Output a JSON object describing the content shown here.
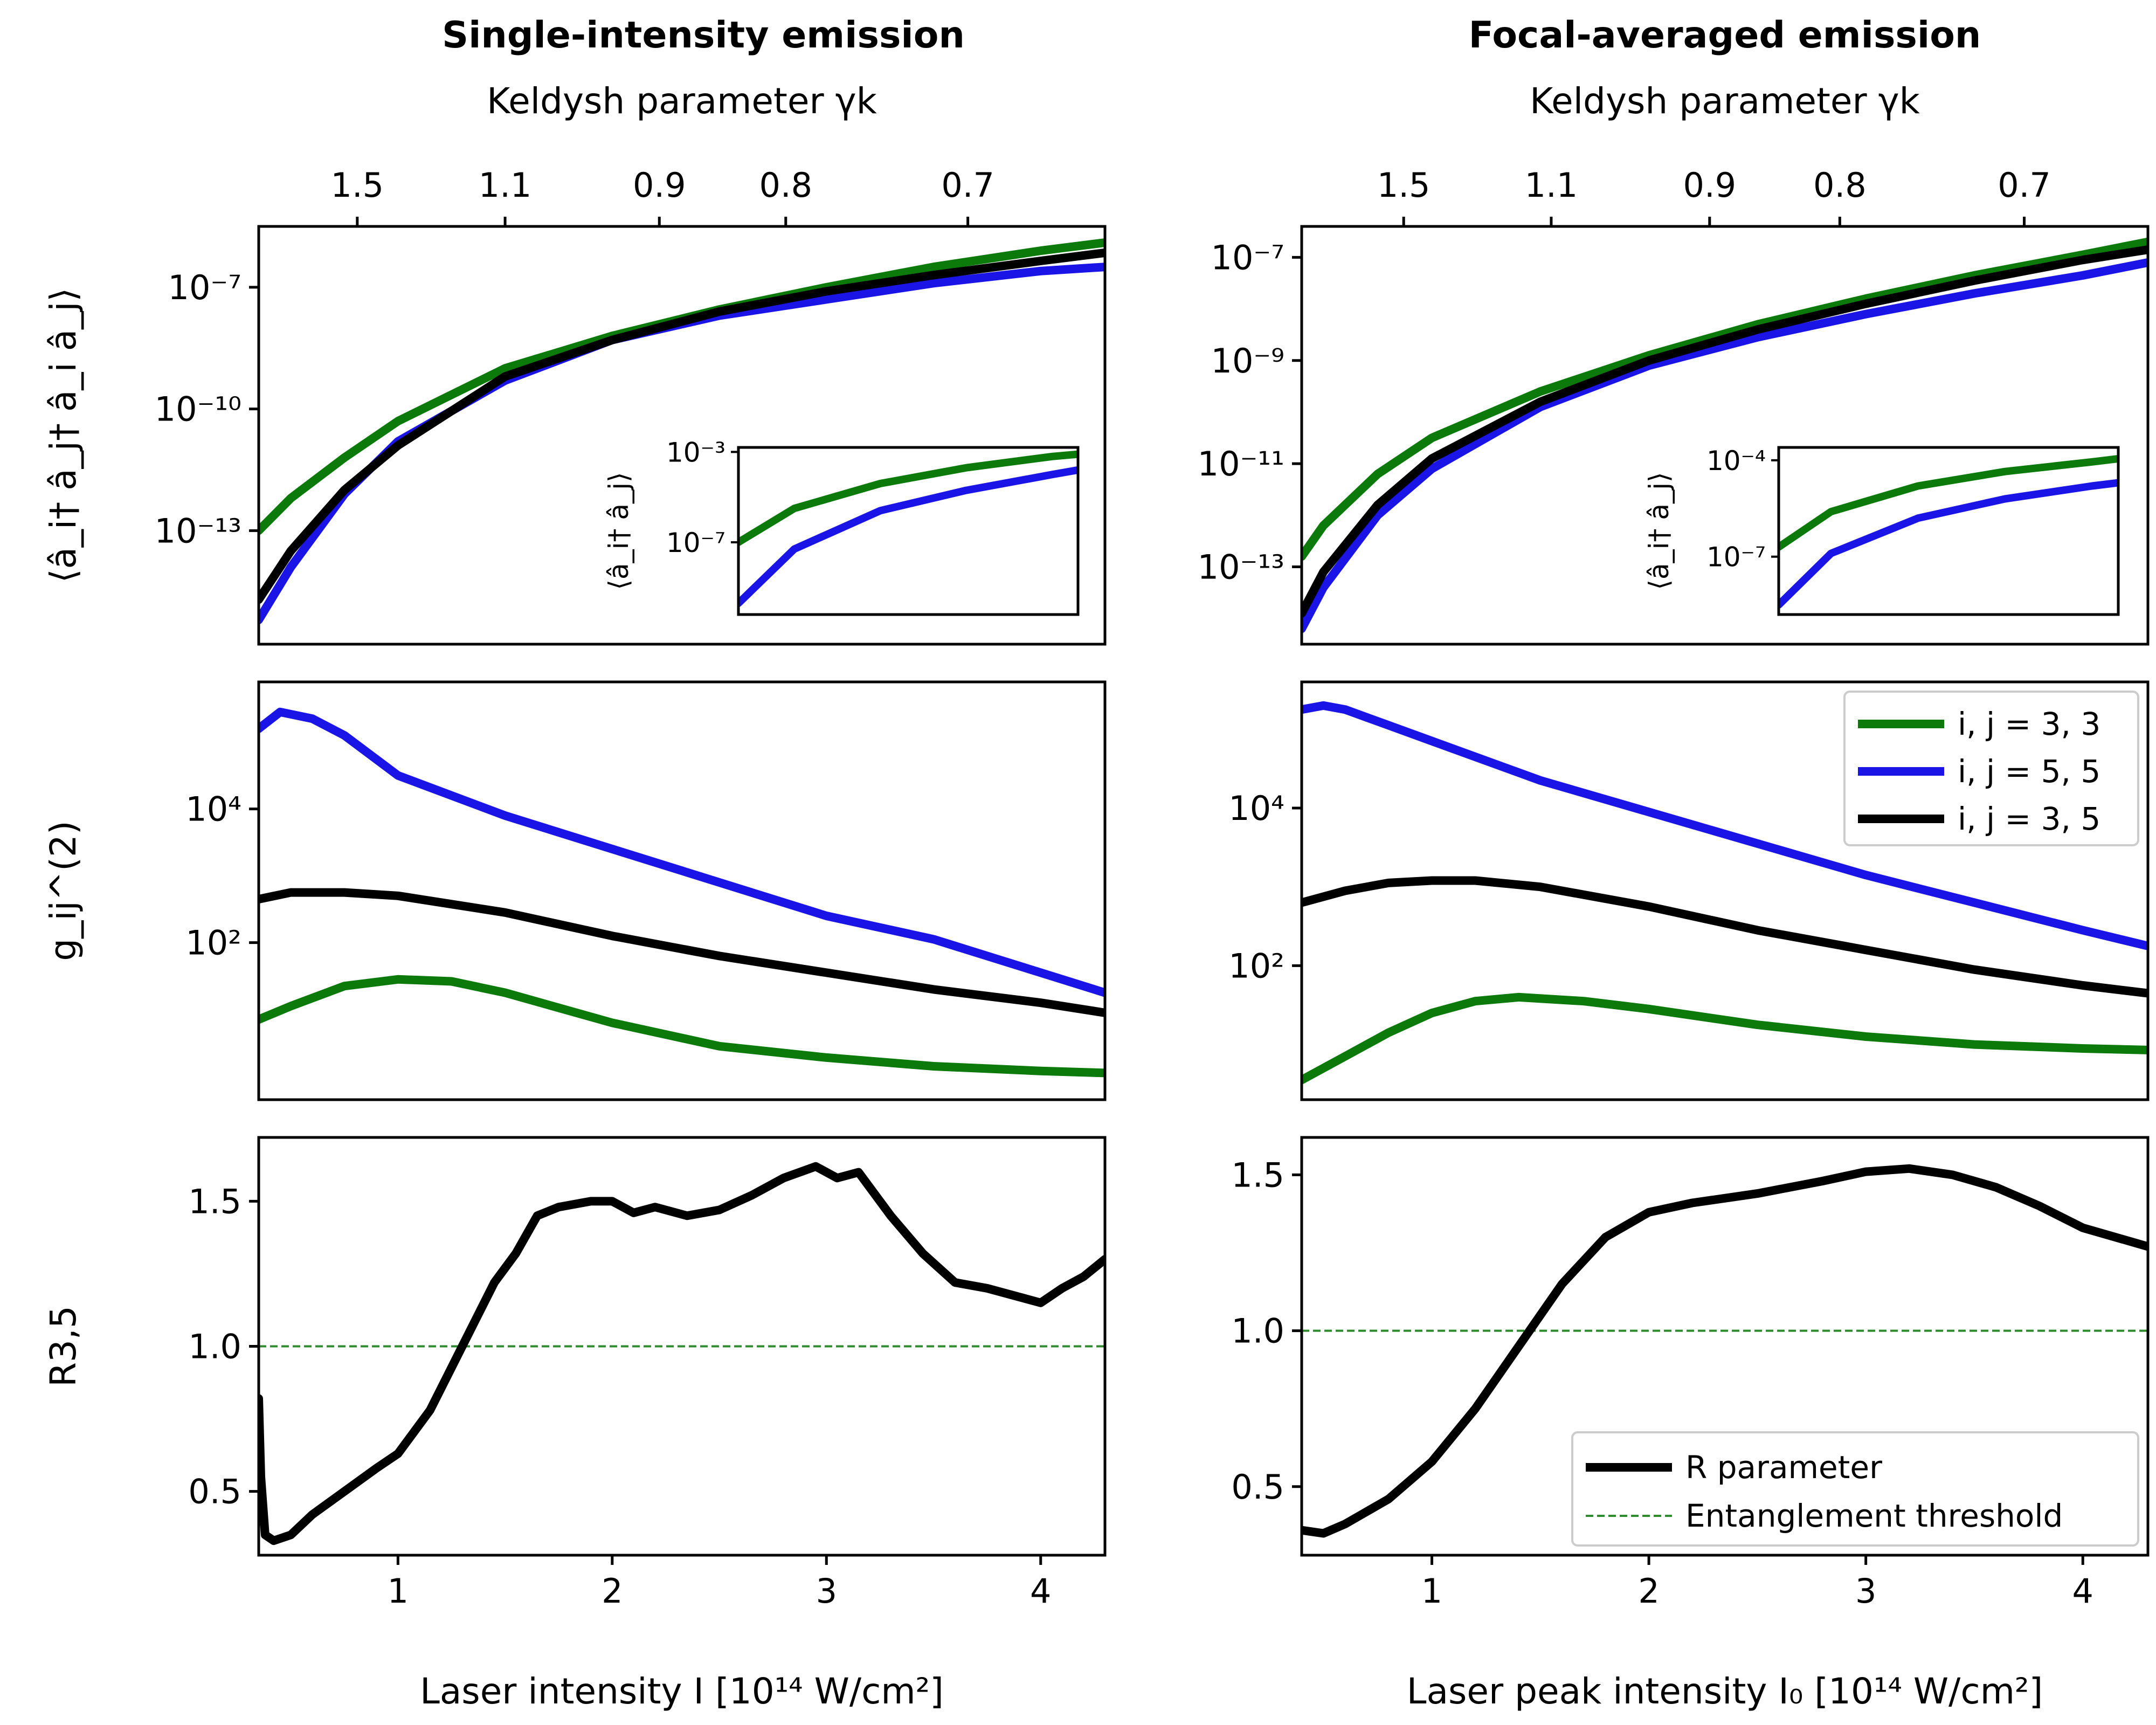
{
  "colors": {
    "green": "#0b7a0b",
    "blue": "#1a14e6",
    "black": "#000000",
    "threshold": "#2e8b2e"
  },
  "titles": {
    "left": "Single-intensity emission",
    "right": "Focal-averaged emission"
  },
  "chart_data": [
    {
      "id": "left_top",
      "type": "line",
      "yscale": "log",
      "xlim": [
        0.35,
        4.3
      ],
      "ylim_exp": [
        -15.8,
        -5.5
      ],
      "ylabel": "⟨â_i† â_j† â_i â_j⟩",
      "yticks": [
        {
          "v": -7,
          "label": "10⁻⁷"
        },
        {
          "v": -10,
          "label": "10⁻¹⁰"
        },
        {
          "v": -13,
          "label": "10⁻¹³"
        }
      ],
      "top_axis": {
        "label": "Keldysh parameter γk",
        "ticks": [
          {
            "x": 0.81,
            "label": "1.5"
          },
          {
            "x": 1.5,
            "label": "1.1"
          },
          {
            "x": 2.22,
            "label": "0.9"
          },
          {
            "x": 2.81,
            "label": "0.8"
          },
          {
            "x": 3.66,
            "label": "0.7"
          }
        ]
      },
      "series": [
        {
          "name": "i,j = 3,3",
          "color": "green",
          "x": [
            0.35,
            0.5,
            0.75,
            1.0,
            1.5,
            2.0,
            2.5,
            3.0,
            3.5,
            4.0,
            4.3
          ],
          "y_exp": [
            -13.0,
            -12.2,
            -11.2,
            -10.3,
            -9.0,
            -8.2,
            -7.55,
            -7.0,
            -6.5,
            -6.1,
            -5.9
          ]
        },
        {
          "name": "i,j = 5,5",
          "color": "blue",
          "x": [
            0.35,
            0.5,
            0.75,
            1.0,
            1.5,
            2.0,
            2.5,
            3.0,
            3.5,
            4.0,
            4.3
          ],
          "y_exp": [
            -15.2,
            -13.9,
            -12.1,
            -10.8,
            -9.3,
            -8.3,
            -7.7,
            -7.3,
            -6.9,
            -6.6,
            -6.5
          ]
        },
        {
          "name": "i,j = 3,5",
          "color": "black",
          "x": [
            0.35,
            0.5,
            0.75,
            1.0,
            1.5,
            2.0,
            2.5,
            3.0,
            3.5,
            4.0,
            4.3
          ],
          "y_exp": [
            -14.7,
            -13.5,
            -12.0,
            -10.9,
            -9.2,
            -8.3,
            -7.6,
            -7.1,
            -6.7,
            -6.35,
            -6.15
          ]
        }
      ],
      "inset": {
        "ylabel": "⟨â_i† â_j⟩",
        "ylim_exp": [
          -10.2,
          -2.8
        ],
        "yticks": [
          {
            "v": -3,
            "label": "10⁻³"
          },
          {
            "v": -7,
            "label": "10⁻⁷"
          }
        ],
        "series": [
          {
            "color": "green",
            "x": [
              0.35,
              1.0,
              2.0,
              3.0,
              4.0,
              4.3
            ],
            "y_exp": [
              -7.0,
              -5.5,
              -4.4,
              -3.7,
              -3.2,
              -3.1
            ]
          },
          {
            "color": "blue",
            "x": [
              0.35,
              1.0,
              2.0,
              3.0,
              4.0,
              4.3
            ],
            "y_exp": [
              -9.7,
              -7.3,
              -5.6,
              -4.7,
              -4.0,
              -3.8
            ]
          }
        ]
      }
    },
    {
      "id": "right_top",
      "type": "line",
      "yscale": "log",
      "xlim": [
        0.4,
        4.3
      ],
      "ylim_exp": [
        -14.5,
        -6.4
      ],
      "ylabel": "",
      "yticks": [
        {
          "v": -7,
          "label": "10⁻⁷"
        },
        {
          "v": -9,
          "label": "10⁻⁹"
        },
        {
          "v": -11,
          "label": "10⁻¹¹"
        },
        {
          "v": -13,
          "label": "10⁻¹³"
        }
      ],
      "top_axis": {
        "label": "Keldysh parameter γk",
        "ticks": [
          {
            "x": 0.87,
            "label": "1.5"
          },
          {
            "x": 1.55,
            "label": "1.1"
          },
          {
            "x": 2.28,
            "label": "0.9"
          },
          {
            "x": 2.88,
            "label": "0.8"
          },
          {
            "x": 3.73,
            "label": "0.7"
          }
        ]
      },
      "series": [
        {
          "name": "i,j = 3,3",
          "color": "green",
          "x": [
            0.4,
            0.5,
            0.75,
            1.0,
            1.5,
            2.0,
            2.5,
            3.0,
            3.5,
            4.0,
            4.3
          ],
          "y_exp": [
            -12.8,
            -12.2,
            -11.2,
            -10.5,
            -9.6,
            -8.9,
            -8.3,
            -7.8,
            -7.35,
            -6.95,
            -6.7
          ]
        },
        {
          "name": "i,j = 5,5",
          "color": "blue",
          "x": [
            0.4,
            0.5,
            0.75,
            1.0,
            1.5,
            2.0,
            2.5,
            3.0,
            3.5,
            4.0,
            4.3
          ],
          "y_exp": [
            -14.2,
            -13.4,
            -12.0,
            -11.1,
            -9.9,
            -9.1,
            -8.55,
            -8.1,
            -7.7,
            -7.35,
            -7.1
          ]
        },
        {
          "name": "i,j = 3,5",
          "color": "black",
          "x": [
            0.4,
            0.5,
            0.75,
            1.0,
            1.5,
            2.0,
            2.5,
            3.0,
            3.5,
            4.0,
            4.3
          ],
          "y_exp": [
            -13.9,
            -13.1,
            -11.8,
            -10.9,
            -9.8,
            -9.0,
            -8.4,
            -7.9,
            -7.45,
            -7.05,
            -6.85
          ]
        }
      ],
      "inset": {
        "ylabel": "⟨â_i† â_j⟩",
        "ylim_exp": [
          -8.8,
          -3.6
        ],
        "yticks": [
          {
            "v": -4,
            "label": "10⁻⁴"
          },
          {
            "v": -7,
            "label": "10⁻⁷"
          }
        ],
        "series": [
          {
            "color": "green",
            "x": [
              0.4,
              1.0,
              2.0,
              3.0,
              4.0,
              4.3
            ],
            "y_exp": [
              -6.7,
              -5.6,
              -4.8,
              -4.35,
              -4.05,
              -3.95
            ]
          },
          {
            "color": "blue",
            "x": [
              0.4,
              1.0,
              2.0,
              3.0,
              4.0,
              4.3
            ],
            "y_exp": [
              -8.5,
              -6.9,
              -5.8,
              -5.2,
              -4.8,
              -4.7
            ]
          }
        ]
      }
    },
    {
      "id": "left_mid",
      "type": "line",
      "yscale": "log",
      "xlim": [
        0.35,
        4.3
      ],
      "ylim_exp": [
        -0.35,
        5.9
      ],
      "ylabel": "g_ij^(2)",
      "yticks": [
        {
          "v": 4,
          "label": "10⁴"
        },
        {
          "v": 2,
          "label": "10²"
        }
      ],
      "series": [
        {
          "name": "i,j = 3,3",
          "color": "green",
          "x": [
            0.35,
            0.5,
            0.75,
            1.0,
            1.25,
            1.5,
            2.0,
            2.5,
            3.0,
            3.5,
            4.0,
            4.3
          ],
          "y_exp": [
            0.85,
            1.05,
            1.35,
            1.45,
            1.42,
            1.25,
            0.8,
            0.45,
            0.28,
            0.15,
            0.08,
            0.05
          ]
        },
        {
          "name": "i,j = 5,5",
          "color": "blue",
          "x": [
            0.35,
            0.45,
            0.6,
            0.75,
            1.0,
            1.5,
            2.0,
            2.5,
            3.0,
            3.5,
            4.0,
            4.3
          ],
          "y_exp": [
            5.2,
            5.45,
            5.35,
            5.1,
            4.5,
            3.9,
            3.4,
            2.9,
            2.4,
            2.05,
            1.55,
            1.25
          ]
        },
        {
          "name": "i,j = 3,5",
          "color": "black",
          "x": [
            0.35,
            0.5,
            0.75,
            1.0,
            1.5,
            2.0,
            2.5,
            3.0,
            3.5,
            4.0,
            4.3
          ],
          "y_exp": [
            2.65,
            2.75,
            2.75,
            2.7,
            2.45,
            2.1,
            1.8,
            1.55,
            1.3,
            1.1,
            0.95
          ]
        }
      ]
    },
    {
      "id": "right_mid",
      "type": "line",
      "yscale": "log",
      "xlim": [
        0.4,
        4.3
      ],
      "ylim_exp": [
        0.3,
        5.6
      ],
      "ylabel": "",
      "yticks": [
        {
          "v": 4,
          "label": "10⁴"
        },
        {
          "v": 2,
          "label": "10²"
        }
      ],
      "legend": {
        "position": "top-right",
        "entries": [
          "i, j = 3, 3",
          "i, j = 5, 5",
          "i, j = 3, 5"
        ]
      },
      "series": [
        {
          "name": "i, j = 3, 3",
          "color": "green",
          "x": [
            0.4,
            0.6,
            0.8,
            1.0,
            1.2,
            1.4,
            1.7,
            2.0,
            2.5,
            3.0,
            3.5,
            4.0,
            4.3
          ],
          "y_exp": [
            0.55,
            0.85,
            1.15,
            1.4,
            1.55,
            1.6,
            1.55,
            1.45,
            1.25,
            1.1,
            1.0,
            0.95,
            0.93
          ]
        },
        {
          "name": "i, j = 5, 5",
          "color": "blue",
          "x": [
            0.4,
            0.5,
            0.6,
            0.8,
            1.0,
            1.5,
            2.0,
            2.5,
            3.0,
            3.5,
            4.0,
            4.3
          ],
          "y_exp": [
            5.25,
            5.3,
            5.25,
            5.05,
            4.85,
            4.35,
            3.95,
            3.55,
            3.15,
            2.8,
            2.45,
            2.25
          ]
        },
        {
          "name": "i, j = 3, 5",
          "color": "black",
          "x": [
            0.4,
            0.6,
            0.8,
            1.0,
            1.2,
            1.5,
            2.0,
            2.5,
            3.0,
            3.5,
            4.0,
            4.3
          ],
          "y_exp": [
            2.8,
            2.95,
            3.05,
            3.08,
            3.08,
            3.0,
            2.75,
            2.45,
            2.2,
            1.95,
            1.75,
            1.65
          ]
        }
      ]
    },
    {
      "id": "left_bot",
      "type": "line",
      "yscale": "linear",
      "xlim": [
        0.35,
        4.3
      ],
      "ylim": [
        0.28,
        1.72
      ],
      "ylabel": "R3,5",
      "xlabel": "Laser intensity I [10¹⁴ W/cm²]",
      "xticks": [
        {
          "v": 1,
          "label": "1"
        },
        {
          "v": 2,
          "label": "2"
        },
        {
          "v": 3,
          "label": "3"
        },
        {
          "v": 4,
          "label": "4"
        }
      ],
      "yticks": [
        {
          "v": 0.5,
          "label": "0.5"
        },
        {
          "v": 1.0,
          "label": "1.0"
        },
        {
          "v": 1.5,
          "label": "1.5"
        }
      ],
      "threshold": 1.0,
      "series": [
        {
          "name": "R parameter",
          "color": "black",
          "x": [
            0.35,
            0.36,
            0.38,
            0.42,
            0.5,
            0.6,
            0.75,
            0.9,
            1.0,
            1.15,
            1.3,
            1.45,
            1.55,
            1.65,
            1.75,
            1.9,
            2.0,
            2.1,
            2.2,
            2.35,
            2.5,
            2.65,
            2.8,
            2.95,
            3.05,
            3.15,
            3.3,
            3.45,
            3.6,
            3.75,
            3.9,
            4.0,
            4.1,
            4.2,
            4.3
          ],
          "y": [
            0.82,
            0.55,
            0.35,
            0.33,
            0.35,
            0.42,
            0.5,
            0.58,
            0.63,
            0.78,
            1.0,
            1.22,
            1.32,
            1.45,
            1.48,
            1.5,
            1.5,
            1.46,
            1.48,
            1.45,
            1.47,
            1.52,
            1.58,
            1.62,
            1.58,
            1.6,
            1.45,
            1.32,
            1.22,
            1.2,
            1.17,
            1.15,
            1.2,
            1.24,
            1.3
          ]
        }
      ]
    },
    {
      "id": "right_bot",
      "type": "line",
      "yscale": "linear",
      "xlim": [
        0.4,
        4.3
      ],
      "ylim": [
        0.28,
        1.62
      ],
      "ylabel": "",
      "xlabel": "Laser peak intensity I₀ [10¹⁴ W/cm²]",
      "xticks": [
        {
          "v": 1,
          "label": "1"
        },
        {
          "v": 2,
          "label": "2"
        },
        {
          "v": 3,
          "label": "3"
        },
        {
          "v": 4,
          "label": "4"
        }
      ],
      "yticks": [
        {
          "v": 0.5,
          "label": "0.5"
        },
        {
          "v": 1.0,
          "label": "1.0"
        },
        {
          "v": 1.5,
          "label": "1.5"
        }
      ],
      "threshold": 1.0,
      "legend": {
        "position": "bottom-right",
        "entries": [
          "R parameter",
          "Entanglement threshold"
        ]
      },
      "series": [
        {
          "name": "R parameter",
          "color": "black",
          "x": [
            0.4,
            0.5,
            0.6,
            0.8,
            1.0,
            1.2,
            1.4,
            1.6,
            1.8,
            2.0,
            2.2,
            2.5,
            2.8,
            3.0,
            3.2,
            3.4,
            3.6,
            3.8,
            4.0,
            4.3
          ],
          "y": [
            0.36,
            0.35,
            0.38,
            0.46,
            0.58,
            0.75,
            0.95,
            1.15,
            1.3,
            1.38,
            1.41,
            1.44,
            1.48,
            1.51,
            1.52,
            1.5,
            1.46,
            1.4,
            1.33,
            1.27
          ]
        }
      ]
    }
  ]
}
